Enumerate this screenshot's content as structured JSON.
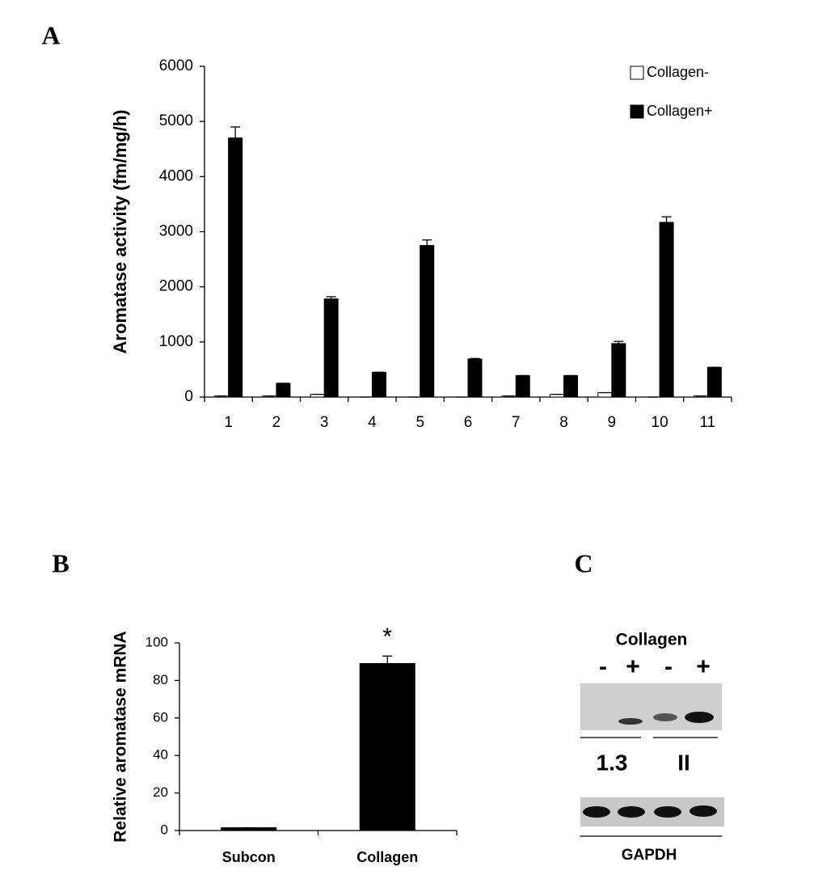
{
  "panels": [
    "A",
    "B",
    "C"
  ],
  "chart_data": [
    {
      "type": "bar",
      "ylabel": "Aromatase activity (fm/mg/h)",
      "categories": [
        "1",
        "2",
        "3",
        "4",
        "5",
        "6",
        "7",
        "8",
        "9",
        "10",
        "11"
      ],
      "series": [
        {
          "name": "Collagen-",
          "color": "#ffffff",
          "values": [
            20,
            20,
            50,
            0,
            0,
            0,
            20,
            50,
            80,
            0,
            20
          ],
          "errors": [
            0,
            0,
            0,
            0,
            0,
            0,
            0,
            0,
            0,
            0,
            0
          ]
        },
        {
          "name": "Collagen+",
          "color": "#000000",
          "values": [
            4700,
            250,
            1780,
            450,
            2750,
            690,
            390,
            390,
            970,
            3170,
            540
          ],
          "errors": [
            200,
            0,
            40,
            0,
            100,
            10,
            0,
            0,
            40,
            100,
            0
          ]
        }
      ],
      "ylim": [
        0,
        6000
      ],
      "yticks": [
        0,
        1000,
        2000,
        3000,
        4000,
        5000,
        6000
      ],
      "legend": "upper right"
    },
    {
      "type": "bar",
      "ylabel": "Relative aromatase mRNA",
      "categories": [
        "Subcon",
        "Collagen"
      ],
      "values": [
        1.5,
        89
      ],
      "errors": [
        0,
        4
      ],
      "color": "#000000",
      "annotation": "*",
      "ylim": [
        0,
        100
      ],
      "yticks": [
        0,
        20,
        40,
        60,
        80,
        100
      ]
    }
  ],
  "gel": {
    "label": "Collagen",
    "lanes": [
      "-",
      "+",
      "-",
      "+"
    ],
    "groups": [
      "1.3",
      "II"
    ],
    "loading_control": "GAPDH"
  }
}
